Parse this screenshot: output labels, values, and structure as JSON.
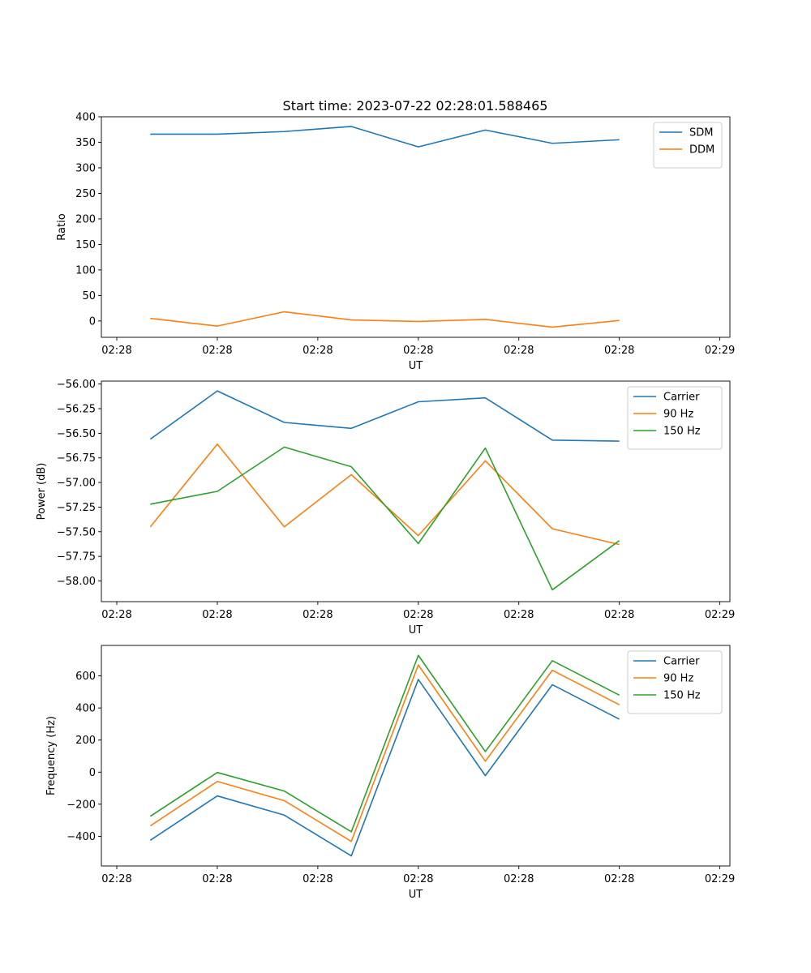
{
  "title": "Start time: 2023-07-22 02:28:01.588465",
  "chart_data": [
    {
      "type": "line",
      "xlabel": "UT",
      "ylabel": "Ratio",
      "xtick_labels": [
        "02:28",
        "02:28",
        "02:28",
        "02:28",
        "02:28",
        "02:28",
        "02:29"
      ],
      "yticks": [
        0,
        50,
        100,
        150,
        200,
        250,
        300,
        350,
        400
      ],
      "ylim": [
        -32,
        400
      ],
      "x": [
        1,
        2,
        3,
        4,
        5,
        6,
        7,
        8
      ],
      "xlim": [
        0.27,
        9.65
      ],
      "xtick_positions": [
        0.5,
        2.0,
        3.5,
        5.0,
        6.5,
        8.0,
        9.5
      ],
      "legend_position": "top-right",
      "series": [
        {
          "name": "SDM",
          "color": "#1f77b4",
          "values": [
            366,
            366,
            371,
            381,
            341,
            374,
            348,
            355
          ]
        },
        {
          "name": "DDM",
          "color": "#ff7f0e",
          "values": [
            5,
            -10,
            18,
            2,
            -1,
            3,
            -12,
            1
          ]
        }
      ]
    },
    {
      "type": "line",
      "xlabel": "UT",
      "ylabel": "Power (dB)",
      "xtick_labels": [
        "02:28",
        "02:28",
        "02:28",
        "02:28",
        "02:28",
        "02:28",
        "02:29"
      ],
      "yticks": [
        -56.0,
        -56.25,
        -56.5,
        -56.75,
        -57.0,
        -57.25,
        -57.5,
        -57.75,
        -58.0
      ],
      "ytick_labels": [
        "−56.00",
        "−56.25",
        "−56.50",
        "−56.75",
        "−57.00",
        "−57.25",
        "−57.50",
        "−57.75",
        "−58.00"
      ],
      "ylim": [
        -58.21,
        -55.97
      ],
      "x": [
        1,
        2,
        3,
        4,
        5,
        6,
        7,
        8
      ],
      "xlim": [
        0.27,
        9.65
      ],
      "xtick_positions": [
        0.5,
        2.0,
        3.5,
        5.0,
        6.5,
        8.0,
        9.5
      ],
      "legend_position": "top-right",
      "series": [
        {
          "name": "Carrier",
          "color": "#1f77b4",
          "values": [
            -56.56,
            -56.07,
            -56.39,
            -56.45,
            -56.18,
            -56.14,
            -56.57,
            -56.58
          ]
        },
        {
          "name": "90 Hz",
          "color": "#ff7f0e",
          "values": [
            -57.45,
            -56.61,
            -57.45,
            -56.92,
            -57.54,
            -56.78,
            -57.47,
            -57.63
          ]
        },
        {
          "name": "150 Hz",
          "color": "#2ca02c",
          "values": [
            -57.22,
            -57.09,
            -56.64,
            -56.84,
            -57.62,
            -56.65,
            -58.09,
            -57.59
          ]
        }
      ]
    },
    {
      "type": "line",
      "xlabel": "UT",
      "ylabel": "Frequency (Hz)",
      "xtick_labels": [
        "02:28",
        "02:28",
        "02:28",
        "02:28",
        "02:28",
        "02:28",
        "02:29"
      ],
      "yticks": [
        -400,
        -200,
        0,
        200,
        400,
        600
      ],
      "ytick_labels": [
        "−400",
        "−200",
        "0",
        "200",
        "400",
        "600"
      ],
      "ylim": [
        -585,
        790
      ],
      "x": [
        1,
        2,
        3,
        4,
        5,
        6,
        7,
        8
      ],
      "xlim": [
        0.27,
        9.65
      ],
      "xtick_positions": [
        0.5,
        2.0,
        3.5,
        5.0,
        6.5,
        8.0,
        9.5
      ],
      "legend_position": "top-right",
      "series": [
        {
          "name": "Carrier",
          "color": "#1f77b4",
          "values": [
            -425,
            -148,
            -268,
            -522,
            578,
            -22,
            545,
            330
          ]
        },
        {
          "name": "90 Hz",
          "color": "#ff7f0e",
          "values": [
            -335,
            -58,
            -178,
            -432,
            668,
            68,
            635,
            420
          ]
        },
        {
          "name": "150 Hz",
          "color": "#2ca02c",
          "values": [
            -275,
            -2,
            -118,
            -372,
            728,
            128,
            695,
            480
          ]
        }
      ]
    }
  ]
}
